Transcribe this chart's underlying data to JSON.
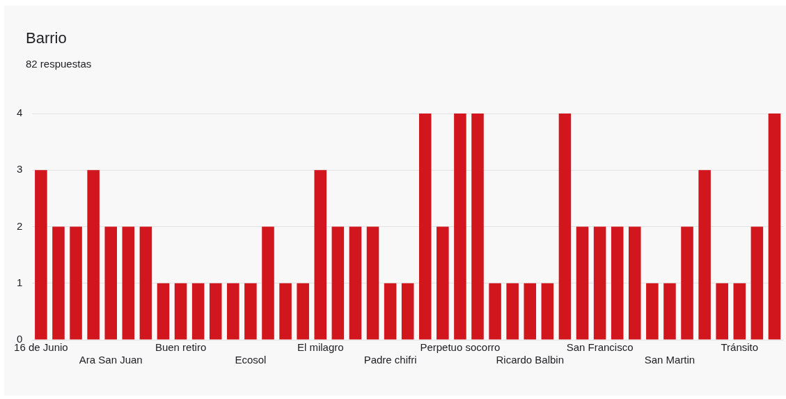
{
  "chart_data": {
    "type": "bar",
    "title": "Barrio",
    "subtitle": "82 respuestas",
    "categories": [
      "16 de Junio",
      null,
      null,
      null,
      "Ara San Juan",
      null,
      null,
      null,
      "Buen retiro",
      null,
      null,
      null,
      "Ecosol",
      null,
      null,
      null,
      "El milagro",
      null,
      null,
      null,
      "Padre chifri",
      null,
      null,
      null,
      "Perpetuo socorro",
      null,
      null,
      null,
      "Ricardo Balbin",
      null,
      null,
      null,
      "San Francisco",
      null,
      null,
      null,
      "San Martin",
      null,
      null,
      null,
      "Tránsito",
      null,
      null
    ],
    "values": [
      3,
      2,
      2,
      3,
      2,
      2,
      2,
      1,
      1,
      1,
      1,
      1,
      1,
      2,
      1,
      1,
      3,
      2,
      2,
      2,
      1,
      1,
      4,
      2,
      4,
      4,
      1,
      1,
      1,
      1,
      4,
      2,
      2,
      2,
      2,
      1,
      1,
      2,
      3,
      1,
      1,
      2,
      4
    ],
    "color": "#d2161e",
    "ylim": [
      0,
      4
    ],
    "yticks": [
      0,
      1,
      2,
      3,
      4
    ],
    "grid": "y",
    "legend": false
  }
}
